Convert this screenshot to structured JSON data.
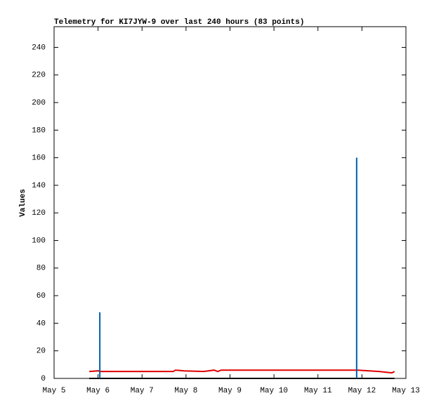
{
  "chart_data": {
    "type": "line",
    "title": "Telemetry for KI7JYW-9 over last 240 hours (83 points)",
    "ylabel": "Values",
    "xlim": [
      5,
      13
    ],
    "xticks": [
      {
        "value": 5,
        "label": "May 5"
      },
      {
        "value": 6,
        "label": "May 6"
      },
      {
        "value": 7,
        "label": "May 7"
      },
      {
        "value": 8,
        "label": "May 8"
      },
      {
        "value": 9,
        "label": "May 9"
      },
      {
        "value": 10,
        "label": "May 10"
      },
      {
        "value": 11,
        "label": "May 11"
      },
      {
        "value": 12,
        "label": "May 12"
      },
      {
        "value": 13,
        "label": "May 13"
      }
    ],
    "ylim": [
      0,
      255
    ],
    "yticks": [
      0,
      20,
      40,
      60,
      80,
      100,
      120,
      140,
      160,
      180,
      200,
      220,
      240
    ],
    "series": [
      {
        "style": "line",
        "color": "#000000",
        "x": [
          5.8,
          12.74
        ],
        "values": [
          0,
          0
        ]
      },
      {
        "style": "line",
        "color": "#e00000",
        "x": [
          5.8,
          6.01,
          6.05,
          7.71,
          7.76,
          7.95,
          8.4,
          8.64,
          8.72,
          8.8,
          11.91,
          12.39,
          12.68,
          12.74
        ],
        "values": [
          5,
          5.5,
          5,
          5,
          6,
          5.5,
          5,
          6,
          5,
          6,
          6,
          5,
          4,
          5
        ]
      },
      {
        "style": "impulses",
        "color": "#0060ad",
        "x": [
          6.04,
          11.88
        ],
        "values": [
          48,
          160
        ]
      }
    ]
  }
}
